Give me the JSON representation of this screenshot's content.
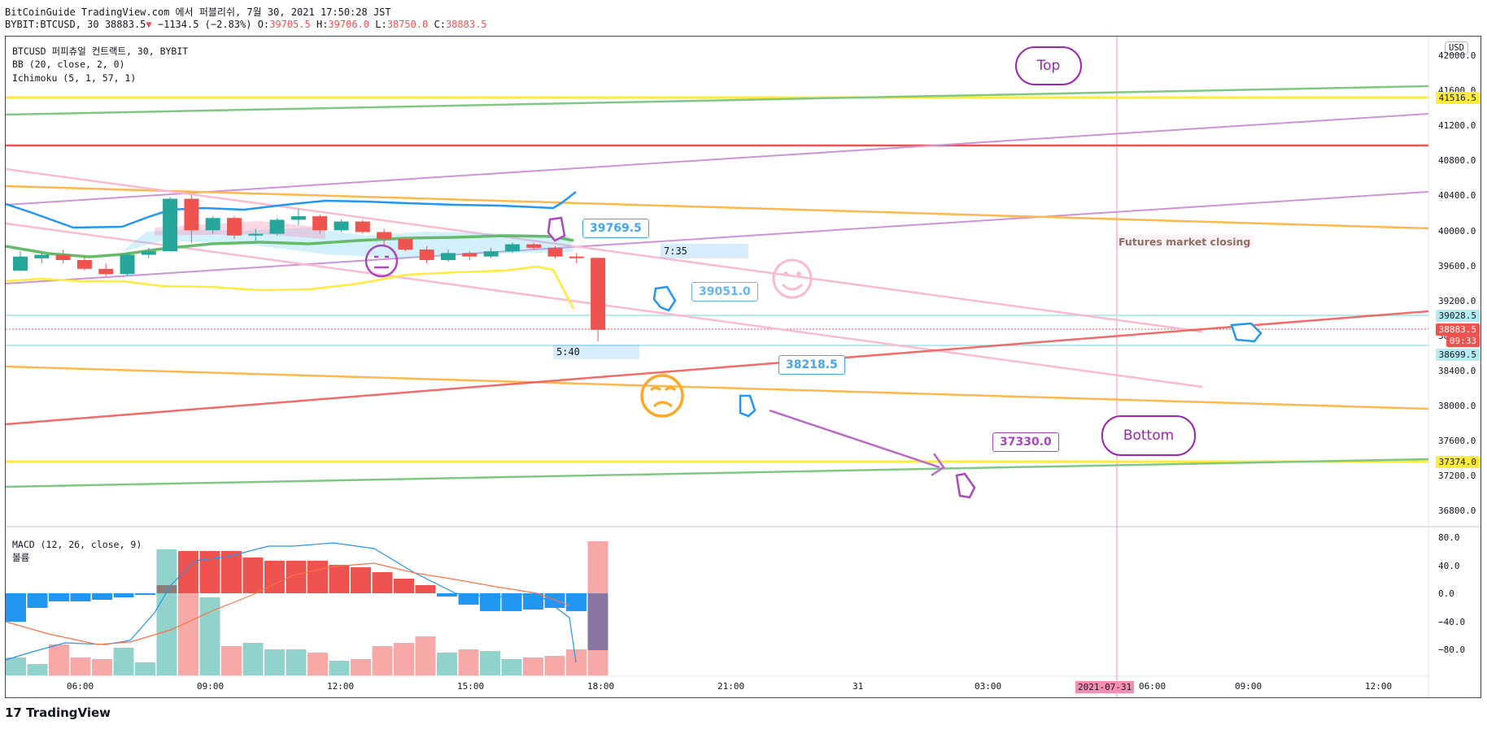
{
  "header": {
    "line1": "BitCoinGuide TradingView.com 에서 퍼블리쉬, 7월 30, 2021 17:50:28 JST",
    "symbol": "BYBIT:BTCUSD, 30",
    "last": "38883.5",
    "change_arrow": "▼",
    "change": "−1134.5 (−2.83%)",
    "o_label": "O:",
    "o": "39705.5",
    "h_label": "H:",
    "h": "39706.0",
    "l_label": "L:",
    "l": "38750.0",
    "c_label": "C:",
    "c": "38883.5"
  },
  "legend": {
    "title": "BTCUSD 퍼피츄얼 컨트랙트, 30, BYBIT",
    "bb": "BB (20, close, 2, 0)",
    "ichimoku": "Ichimoku (5, 1, 57, 1)",
    "macd": "MACD (12, 26, close, 9)",
    "volume": "볼륨"
  },
  "currency": "USD",
  "price_axis": [
    "42000.0",
    "41600.0",
    "41200.0",
    "40800.0",
    "40400.0",
    "40000.0",
    "39600.0",
    "39200.0",
    "38800.0",
    "38400.0",
    "38000.0",
    "37600.0",
    "37200.0",
    "36800.0"
  ],
  "macd_axis": [
    "80.0",
    "40.0",
    "0.0",
    "−40.0",
    "−80.0"
  ],
  "time_axis": [
    "06:00",
    "09:00",
    "12:00",
    "15:00",
    "18:00",
    "21:00",
    "31",
    "03:00",
    "06:00",
    "09:00",
    "12:00"
  ],
  "time_highlight": "2021-07-31",
  "price_tags": {
    "top_level": "41516.5",
    "upper_band": "39028.5",
    "current": "38883.5",
    "countdown": "09:33",
    "lower_band": "38699.5",
    "bottom_level": "37374.0"
  },
  "callouts": {
    "c1": "39769.5",
    "c2": "39051.0",
    "c3": "38218.5",
    "c4": "37330.0"
  },
  "bubbles": {
    "top": "Top",
    "bottom": "Bottom"
  },
  "time_boxes": {
    "t1": "7:35",
    "t2": "5:40"
  },
  "note": "Futures market closing",
  "brand": "TradingView",
  "colors": {
    "up": "#26a69a",
    "down": "#ef5350",
    "yellow": "#ffeb3b",
    "green_line": "#66bb6a",
    "orange": "#ffa726",
    "purple": "#9c27b0",
    "blue": "#2196f3"
  },
  "chart_data": {
    "type": "candlestick",
    "series": [
      {
        "name": "candles",
        "values": [
          [
            39560,
            39780,
            39560,
            39720
          ],
          [
            39700,
            39760,
            39640,
            39740
          ],
          [
            39740,
            39800,
            39640,
            39680
          ],
          [
            39680,
            39720,
            39560,
            39580
          ],
          [
            39580,
            39640,
            39500,
            39520
          ],
          [
            39520,
            39760,
            39500,
            39740
          ],
          [
            39740,
            39820,
            39700,
            39780
          ],
          [
            39780,
            40400,
            39780,
            40380
          ],
          [
            40380,
            40420,
            39880,
            40020
          ],
          [
            40020,
            40180,
            39980,
            40160
          ],
          [
            40160,
            40180,
            39920,
            39960
          ],
          [
            39960,
            40040,
            39900,
            39980
          ],
          [
            39980,
            40160,
            39960,
            40140
          ],
          [
            40140,
            40260,
            40080,
            40180
          ],
          [
            40180,
            40200,
            39980,
            40020
          ],
          [
            40020,
            40140,
            40000,
            40120
          ],
          [
            40120,
            40140,
            39980,
            40000
          ],
          [
            40000,
            40040,
            39840,
            39920
          ],
          [
            39920,
            39940,
            39780,
            39800
          ],
          [
            39800,
            39840,
            39640,
            39680
          ],
          [
            39680,
            39800,
            39660,
            39760
          ],
          [
            39760,
            39780,
            39680,
            39720
          ],
          [
            39720,
            39820,
            39700,
            39780
          ],
          [
            39780,
            39880,
            39760,
            39860
          ],
          [
            39860,
            39880,
            39800,
            39820
          ],
          [
            39820,
            39840,
            39700,
            39720
          ],
          [
            39720,
            39760,
            39640,
            39706
          ],
          [
            39705,
            39706,
            38750,
            38883
          ]
        ]
      }
    ]
  }
}
